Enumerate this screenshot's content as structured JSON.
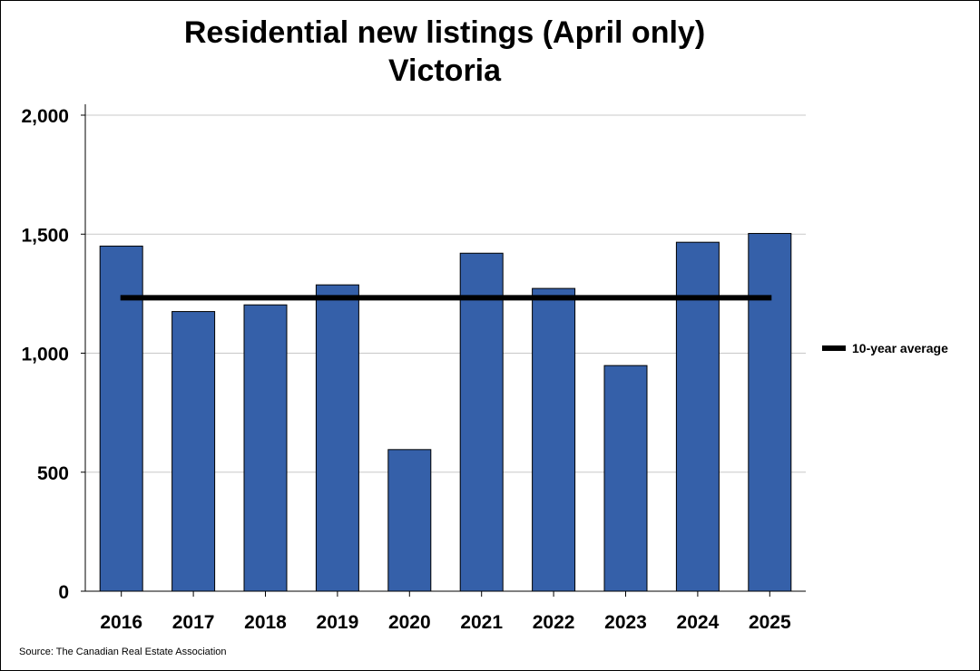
{
  "chart_data": {
    "type": "bar",
    "title_line1": "Residential new listings (April only)",
    "title_line2": "Victoria",
    "categories": [
      "2016",
      "2017",
      "2018",
      "2019",
      "2020",
      "2021",
      "2022",
      "2023",
      "2024",
      "2025"
    ],
    "values": [
      1450,
      1175,
      1203,
      1287,
      595,
      1420,
      1272,
      948,
      1466,
      1503
    ],
    "reference_line": {
      "name": "10-year average",
      "value": 1233
    },
    "ylim": [
      0,
      2000
    ],
    "yticks": [
      0,
      500,
      1000,
      1500,
      2000
    ],
    "ytick_labels": [
      "0",
      "500",
      "1,000",
      "1,500",
      "2,000"
    ],
    "grid": true,
    "legend_position": "right",
    "bar_color": "#3560a9",
    "line_color": "#000000"
  },
  "source": "Source: The Canadian Real Estate Association"
}
